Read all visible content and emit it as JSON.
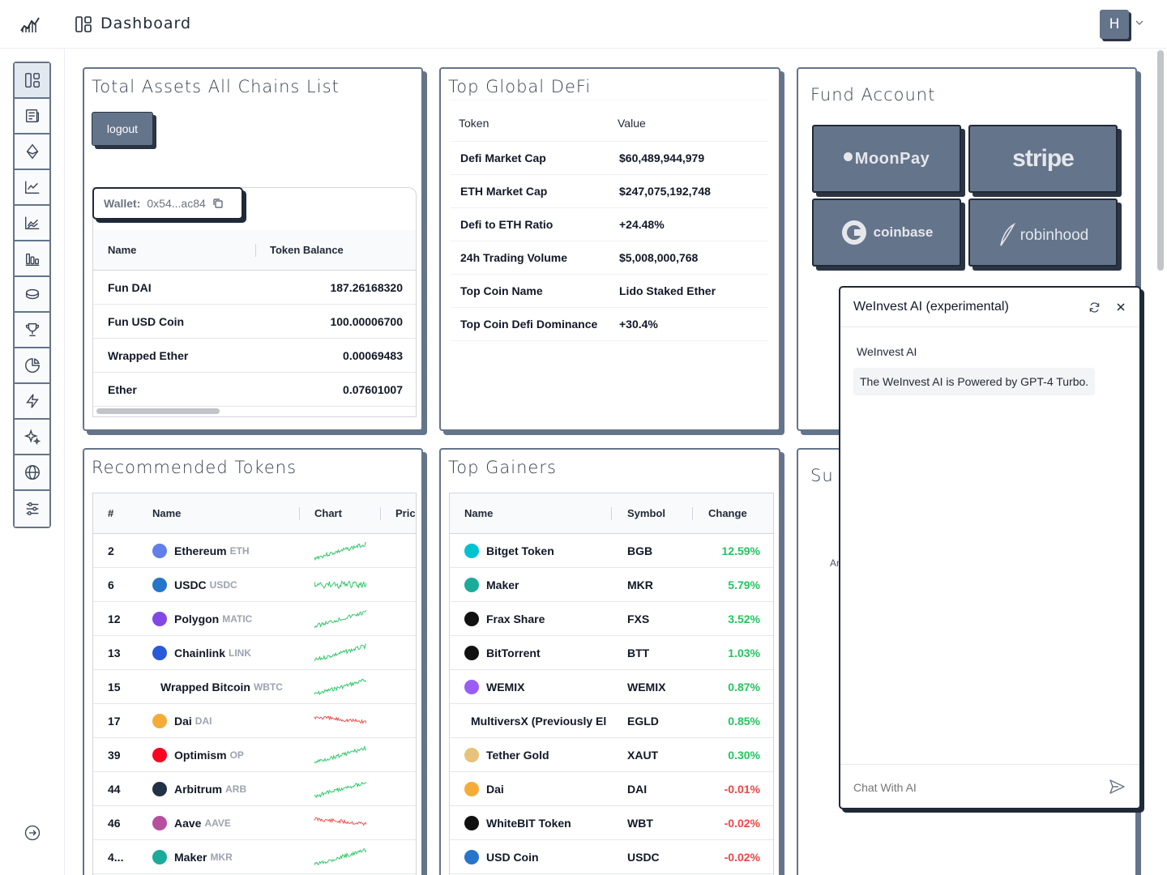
{
  "header": {
    "title": "Dashboard",
    "avatar_initial": "H"
  },
  "sidebar": {
    "items": [
      {
        "icon": "dashboard-icon"
      },
      {
        "icon": "news-icon"
      },
      {
        "icon": "ethereum-icon"
      },
      {
        "icon": "line-chart-icon"
      },
      {
        "icon": "area-chart-icon"
      },
      {
        "icon": "bar-chart-icon"
      },
      {
        "icon": "coins-icon"
      },
      {
        "icon": "trophy-icon"
      },
      {
        "icon": "pie-chart-icon"
      },
      {
        "icon": "lightning-icon"
      },
      {
        "icon": "sparkles-icon"
      },
      {
        "icon": "globe-icon"
      },
      {
        "icon": "sliders-icon"
      }
    ]
  },
  "total_assets": {
    "title": "Total Assets All Chains List",
    "logout_label": "logout",
    "wallet_label": "Wallet:",
    "wallet_address": "0x54...ac84",
    "columns": [
      "Name",
      "Token Balance"
    ],
    "rows": [
      {
        "name": "Fun DAI",
        "balance": "187.26168320"
      },
      {
        "name": "Fun USD Coin",
        "balance": "100.00006700"
      },
      {
        "name": "Wrapped Ether",
        "balance": "0.00069483"
      },
      {
        "name": "Ether",
        "balance": "0.07601007"
      }
    ]
  },
  "top_defi": {
    "title": "Top Global DeFi",
    "columns": [
      "Token",
      "Value"
    ],
    "rows": [
      {
        "token": "Defi Market Cap",
        "value": "$60,489,944,979"
      },
      {
        "token": "ETH Market Cap",
        "value": "$247,075,192,748"
      },
      {
        "token": "Defi to ETH Ratio",
        "value": "+24.48%"
      },
      {
        "token": "24h Trading Volume",
        "value": "$5,008,000,768"
      },
      {
        "token": "Top Coin Name",
        "value": "Lido Staked Ether"
      },
      {
        "token": "Top Coin Defi Dominance",
        "value": "+30.4%"
      }
    ]
  },
  "fund_account": {
    "title": "Fund Account",
    "providers": [
      "MoonPay",
      "stripe",
      "coinbase",
      "robinhood"
    ]
  },
  "recommended": {
    "title": "Recommended Tokens",
    "columns": [
      "#",
      "Name",
      "Chart",
      "Pric"
    ],
    "rows": [
      {
        "rank": "2",
        "name": "Ethereum",
        "symbol": "ETH",
        "icon": "ethereum-icon",
        "color": "#627eea",
        "trend": "up"
      },
      {
        "rank": "6",
        "name": "USDC",
        "symbol": "USDC",
        "icon": "usdc-icon",
        "color": "#2775ca",
        "trend": "flat"
      },
      {
        "rank": "12",
        "name": "Polygon",
        "symbol": "MATIC",
        "icon": "polygon-icon",
        "color": "#8247e5",
        "trend": "up"
      },
      {
        "rank": "13",
        "name": "Chainlink",
        "symbol": "LINK",
        "icon": "chainlink-icon",
        "color": "#2a5ada",
        "trend": "up"
      },
      {
        "rank": "15",
        "name": "Wrapped Bitcoin",
        "symbol": "WBTC",
        "icon": "",
        "color": "",
        "trend": "up"
      },
      {
        "rank": "17",
        "name": "Dai",
        "symbol": "DAI",
        "icon": "dai-icon",
        "color": "#f5ac37",
        "trend": "down"
      },
      {
        "rank": "39",
        "name": "Optimism",
        "symbol": "OP",
        "icon": "optimism-icon",
        "color": "#ff0420",
        "trend": "up"
      },
      {
        "rank": "44",
        "name": "Arbitrum",
        "symbol": "ARB",
        "icon": "arbitrum-icon",
        "color": "#213147",
        "trend": "up"
      },
      {
        "rank": "46",
        "name": "Aave",
        "symbol": "AAVE",
        "icon": "aave-icon",
        "color": "#b6509e",
        "trend": "down"
      },
      {
        "rank": "4...",
        "name": "Maker",
        "symbol": "MKR",
        "icon": "maker-icon",
        "color": "#1aab9b",
        "trend": "up"
      }
    ]
  },
  "top_gainers": {
    "title": "Top Gainers",
    "columns": [
      "Name",
      "Symbol",
      "Change"
    ],
    "rows": [
      {
        "name": "Bitget Token",
        "symbol": "BGB",
        "change": "12.59%",
        "dir": "pos",
        "color": "#00c2d1",
        "icon": "bitget-icon"
      },
      {
        "name": "Maker",
        "symbol": "MKR",
        "change": "5.79%",
        "dir": "pos",
        "color": "#1aab9b",
        "icon": "maker-icon"
      },
      {
        "name": "Frax Share",
        "symbol": "FXS",
        "change": "3.52%",
        "dir": "pos",
        "color": "#111111",
        "icon": "frax-icon"
      },
      {
        "name": "BitTorrent",
        "symbol": "BTT",
        "change": "1.03%",
        "dir": "pos",
        "color": "#111111",
        "icon": "bittorrent-icon"
      },
      {
        "name": "WEMIX",
        "symbol": "WEMIX",
        "change": "0.87%",
        "dir": "pos",
        "color": "#9b5cf6",
        "icon": "wemix-icon"
      },
      {
        "name": "MultiversX (Previously El",
        "symbol": "EGLD",
        "change": "0.85%",
        "dir": "pos",
        "color": "",
        "icon": ""
      },
      {
        "name": "Tether Gold",
        "symbol": "XAUT",
        "change": "0.30%",
        "dir": "pos",
        "color": "#e7c27a",
        "icon": "tether-gold-icon"
      },
      {
        "name": "Dai",
        "symbol": "DAI",
        "change": "-0.01%",
        "dir": "neg",
        "color": "#f5ac37",
        "icon": "dai-icon"
      },
      {
        "name": "WhiteBIT Token",
        "symbol": "WBT",
        "change": "-0.02%",
        "dir": "neg",
        "color": "#111111",
        "icon": "whitebit-icon"
      },
      {
        "name": "USD Coin",
        "symbol": "USDC",
        "change": "-0.02%",
        "dir": "neg",
        "color": "#2775ca",
        "icon": "usdc-icon"
      }
    ]
  },
  "partial_card": {
    "title_fragment": "Su",
    "text_fragment": "Ar"
  },
  "chat": {
    "title": "WeInvest AI (experimental)",
    "sender": "WeInvest AI",
    "message": "The WeInvest AI is Powered by GPT-4 Turbo.",
    "input_placeholder": "Chat With AI"
  },
  "colors": {
    "accent": "#64748b",
    "positive": "#22c55e",
    "negative": "#ef4444"
  }
}
